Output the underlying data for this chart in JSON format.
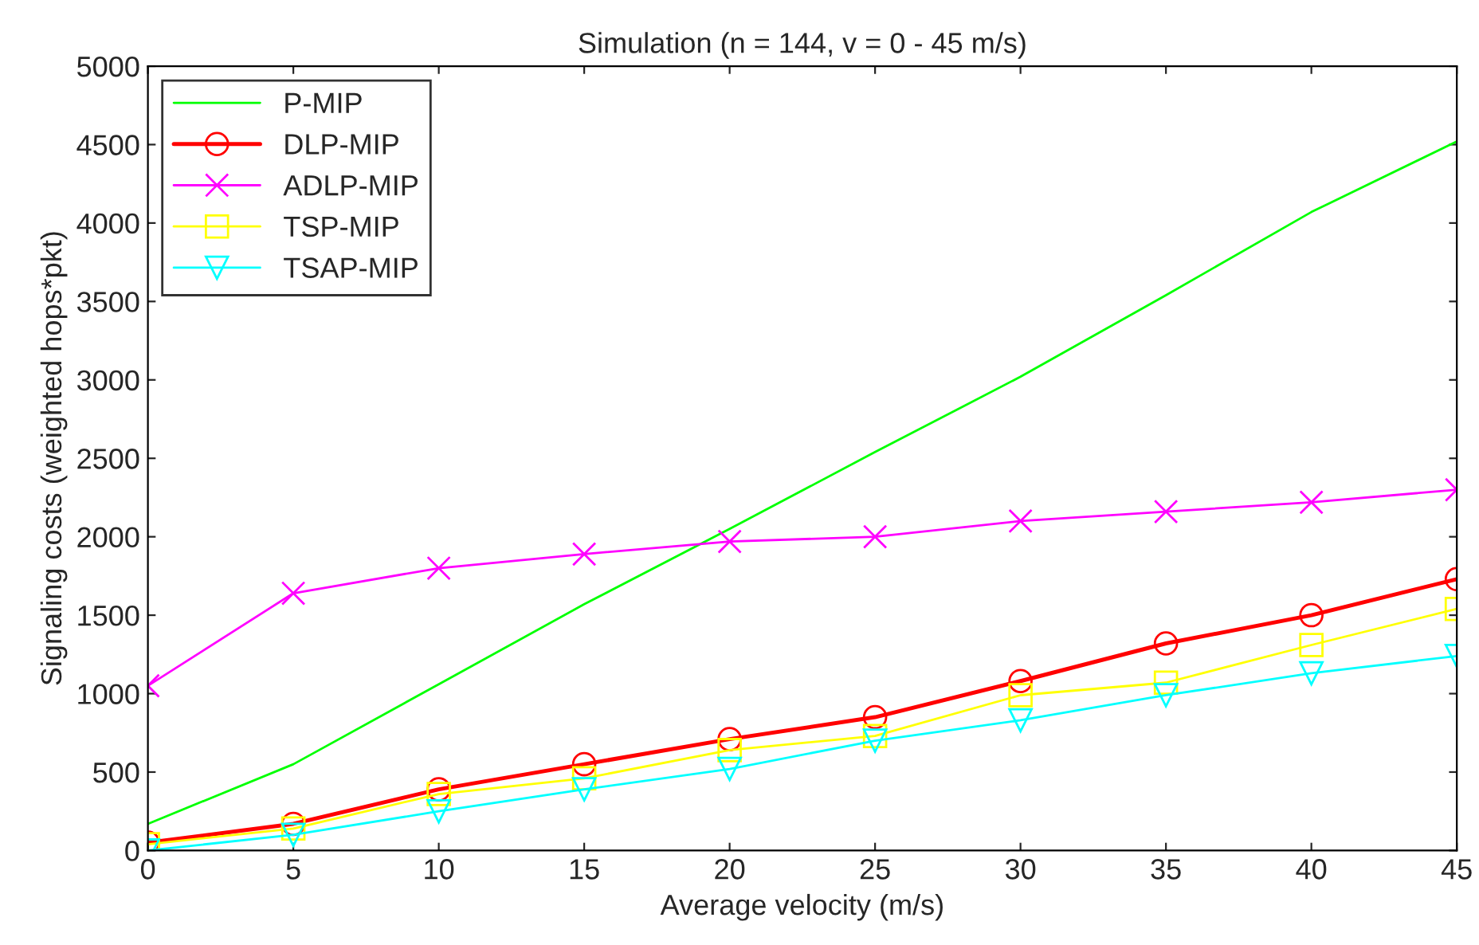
{
  "chart_data": {
    "type": "line",
    "title": "Simulation (n = 144, v = 0 - 45 m/s)",
    "xlabel": "Average velocity (m/s)",
    "ylabel": "Signaling costs (weighted hops*pkt)",
    "x": [
      0,
      5,
      10,
      15,
      20,
      25,
      30,
      35,
      40,
      45
    ],
    "series": [
      {
        "name": "P-MIP",
        "color": "#00ff00",
        "marker": "none",
        "values": [
          170,
          550,
          1060,
          1570,
          2050,
          2540,
          3020,
          3540,
          4070,
          4520
        ]
      },
      {
        "name": "DLP-MIP",
        "color": "#ff0000",
        "marker": "circle",
        "values": [
          50,
          170,
          390,
          550,
          710,
          850,
          1080,
          1320,
          1500,
          1730
        ]
      },
      {
        "name": "ADLP-MIP",
        "color": "#ff00ff",
        "marker": "cross",
        "values": [
          1050,
          1640,
          1800,
          1890,
          1970,
          2000,
          2100,
          2160,
          2220,
          2300
        ]
      },
      {
        "name": "TSP-MIP",
        "color": "#ffff00",
        "marker": "square",
        "values": [
          40,
          140,
          360,
          460,
          640,
          730,
          990,
          1070,
          1310,
          1540
        ]
      },
      {
        "name": "TSAP-MIP",
        "color": "#00ffff",
        "marker": "triangle",
        "values": [
          0,
          100,
          250,
          390,
          520,
          700,
          830,
          990,
          1130,
          1240
        ]
      }
    ],
    "xlim": [
      0,
      45
    ],
    "xticks": [
      0,
      5,
      10,
      15,
      20,
      25,
      30,
      35,
      40,
      45
    ],
    "ylim": [
      0,
      5000
    ],
    "yticks": [
      0,
      500,
      1000,
      1500,
      2000,
      2500,
      3000,
      3500,
      4000,
      4500,
      5000
    ],
    "grid": false,
    "legend": "top left",
    "line_style": "solid"
  }
}
